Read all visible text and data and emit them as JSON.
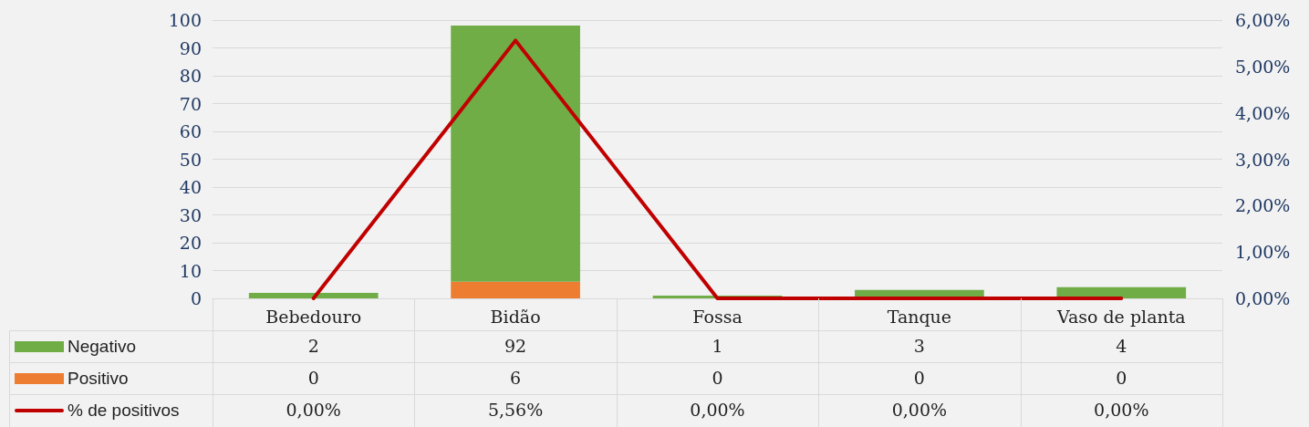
{
  "chart_data": {
    "type": "bar",
    "stacked": true,
    "categories": [
      "Bebedouro",
      "Bidão",
      "Fossa",
      "Tanque",
      "Vaso de planta"
    ],
    "series": [
      {
        "name": "Positivo",
        "color": "#ed7d31",
        "values": [
          0,
          6,
          0,
          0,
          0
        ],
        "value_labels": [
          "0",
          "6",
          "0",
          "0",
          "0"
        ]
      },
      {
        "name": "Negativo",
        "color": "#70ad47",
        "values": [
          2,
          92,
          1,
          3,
          4
        ],
        "value_labels": [
          "2",
          "92",
          "1",
          "3",
          "4"
        ]
      },
      {
        "name": "% de positivos",
        "type": "line",
        "axis": "y2",
        "color": "#c00000",
        "values": [
          0,
          5.56,
          0,
          0,
          0
        ],
        "value_labels": [
          "0,00%",
          "5,56%",
          "0,00%",
          "0,00%",
          "0,00%"
        ]
      }
    ],
    "ylim": [
      0,
      100
    ],
    "yticks": [
      0,
      10,
      20,
      30,
      40,
      50,
      60,
      70,
      80,
      90,
      100
    ],
    "y2lim": [
      0,
      6
    ],
    "y2ticks": [
      {
        "value": 0,
        "label": "0,00%"
      },
      {
        "value": 1,
        "label": "1,00%"
      },
      {
        "value": 2,
        "label": "2,00%"
      },
      {
        "value": 3,
        "label": "3,00%"
      },
      {
        "value": 4,
        "label": "4,00%"
      },
      {
        "value": 5,
        "label": "5,00%"
      },
      {
        "value": 6,
        "label": "6,00%"
      }
    ],
    "grid": "y",
    "legend": "bottom",
    "line_style": "solid"
  }
}
